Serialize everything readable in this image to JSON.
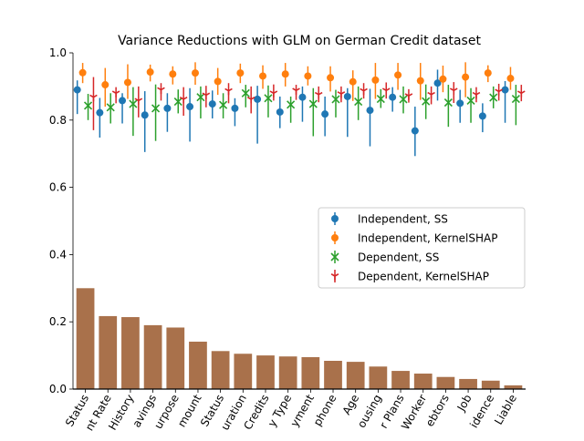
{
  "chart_data": {
    "type": "bar",
    "title": "Variance Reductions with GLM on German Credit dataset",
    "xlabel": "",
    "ylabel": "",
    "ylim": [
      0,
      1.0
    ],
    "yticks": [
      "0.0",
      "0.2",
      "0.4",
      "0.6",
      "0.8",
      "1.0"
    ],
    "categories": [
      "Status",
      "Installment Rate",
      "Credit History",
      "Savings",
      "Purpose",
      "Credit Amount",
      "Personal Status",
      "Duration",
      "Existing Credits",
      "Property Type",
      "Employment",
      "Telephone",
      "Age",
      "Housing",
      "Other Installment Plans",
      "Foreign Worker",
      "Other Debtors",
      "Job",
      "Residence",
      "People Liable"
    ],
    "tick_labels": [
      "Status",
      "nt Rate",
      "History",
      "avings",
      "urpose",
      "mount",
      "Status",
      "uration",
      "Credits",
      "y Type",
      "yment",
      "phone",
      "Age",
      "ousing",
      "r Plans",
      "Worker",
      "ebtors",
      "Job",
      "idence",
      "Liable"
    ],
    "bar_values": [
      0.3,
      0.217,
      0.214,
      0.19,
      0.183,
      0.141,
      0.113,
      0.105,
      0.1,
      0.097,
      0.095,
      0.084,
      0.081,
      0.067,
      0.054,
      0.046,
      0.036,
      0.03,
      0.025,
      0.011
    ],
    "bar_color": "#a9714b",
    "series": [
      {
        "name": "Independent, SS",
        "color": "#1f77b4",
        "marker": "circle",
        "offset": -0.36,
        "values": [
          0.89,
          0.822,
          0.858,
          0.815,
          0.835,
          0.84,
          0.848,
          0.835,
          0.862,
          0.824,
          0.868,
          0.818,
          0.87,
          0.829,
          0.868,
          0.768,
          0.91,
          0.85,
          0.812,
          0.89
        ],
        "lower": [
          0.818,
          0.748,
          0.79,
          0.705,
          0.765,
          0.736,
          0.805,
          0.782,
          0.73,
          0.776,
          0.795,
          0.752,
          0.75,
          0.722,
          0.825,
          0.693,
          0.858,
          0.792,
          0.764,
          0.792
        ],
        "upper": [
          0.918,
          0.866,
          0.88,
          0.886,
          0.88,
          0.895,
          0.888,
          0.865,
          0.902,
          0.87,
          0.9,
          0.87,
          0.895,
          0.893,
          0.898,
          0.84,
          0.95,
          0.89,
          0.85,
          0.916
        ]
      },
      {
        "name": "Independent, KernelSHAP",
        "color": "#ff7f0e",
        "marker": "circle",
        "offset": -0.12,
        "values": [
          0.941,
          0.905,
          0.912,
          0.943,
          0.937,
          0.94,
          0.915,
          0.94,
          0.931,
          0.937,
          0.931,
          0.926,
          0.914,
          0.919,
          0.934,
          0.917,
          0.922,
          0.928,
          0.94,
          0.924
        ],
        "lower": [
          0.91,
          0.84,
          0.863,
          0.915,
          0.906,
          0.905,
          0.875,
          0.91,
          0.893,
          0.9,
          0.903,
          0.885,
          0.857,
          0.863,
          0.89,
          0.86,
          0.883,
          0.868,
          0.913,
          0.89
        ],
        "upper": [
          0.97,
          0.955,
          0.966,
          0.965,
          0.96,
          0.972,
          0.955,
          0.968,
          0.963,
          0.97,
          0.96,
          0.96,
          0.948,
          0.97,
          0.97,
          0.97,
          0.962,
          0.972,
          0.963,
          0.958
        ]
      },
      {
        "name": "Dependent, SS",
        "color": "#2ca02c",
        "marker": "x",
        "offset": 0.12,
        "values": [
          0.843,
          0.838,
          0.848,
          0.835,
          0.855,
          0.868,
          0.845,
          0.88,
          0.865,
          0.846,
          0.848,
          0.862,
          0.855,
          0.863,
          0.862,
          0.856,
          0.852,
          0.858,
          0.867,
          0.863
        ],
        "lower": [
          0.8,
          0.79,
          0.753,
          0.738,
          0.82,
          0.805,
          0.805,
          0.838,
          0.808,
          0.792,
          0.752,
          0.808,
          0.8,
          0.836,
          0.82,
          0.803,
          0.78,
          0.792,
          0.835,
          0.785
        ],
        "upper": [
          0.878,
          0.88,
          0.898,
          0.906,
          0.891,
          0.9,
          0.88,
          0.905,
          0.903,
          0.87,
          0.895,
          0.89,
          0.9,
          0.892,
          0.9,
          0.906,
          0.905,
          0.895,
          0.9,
          0.905
        ]
      },
      {
        "name": "Dependent, KernelSHAP",
        "color": "#d62728",
        "marker": "tri",
        "offset": 0.36,
        "values": [
          0.868,
          0.88,
          0.858,
          0.89,
          0.862,
          0.874,
          0.887,
          0.862,
          0.88,
          0.888,
          0.876,
          0.878,
          0.887,
          0.888,
          0.872,
          0.876,
          0.888,
          0.876,
          0.885,
          0.88
        ],
        "lower": [
          0.77,
          0.85,
          0.808,
          0.858,
          0.813,
          0.838,
          0.85,
          0.82,
          0.858,
          0.86,
          0.853,
          0.853,
          0.864,
          0.864,
          0.852,
          0.847,
          0.851,
          0.853,
          0.858,
          0.856
        ],
        "upper": [
          0.928,
          0.898,
          0.9,
          0.91,
          0.898,
          0.902,
          0.91,
          0.9,
          0.906,
          0.905,
          0.9,
          0.9,
          0.91,
          0.912,
          0.892,
          0.9,
          0.913,
          0.898,
          0.908,
          0.905
        ]
      }
    ],
    "legend_position": "center-right"
  }
}
